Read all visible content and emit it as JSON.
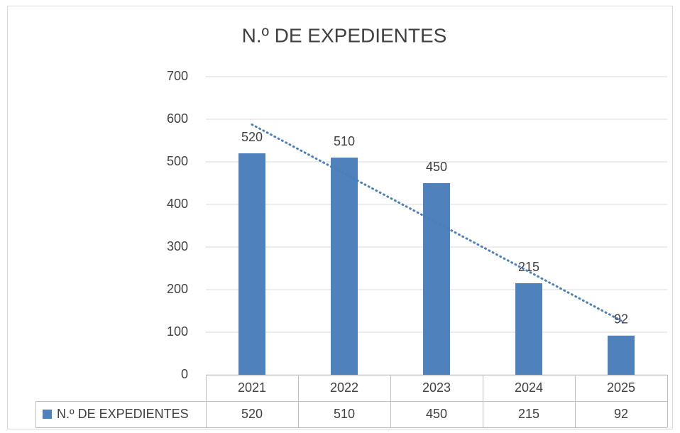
{
  "chart_data": {
    "type": "bar",
    "title": "N.º DE EXPEDIENTES",
    "categories": [
      "2021",
      "2022",
      "2023",
      "2024",
      "2025"
    ],
    "series": [
      {
        "name": "N.º DE EXPEDIENTES",
        "color": "#4f81bd",
        "values": [
          520,
          510,
          450,
          215,
          92
        ]
      }
    ],
    "ylim": [
      0,
      700
    ],
    "yticks": [
      0,
      100,
      200,
      300,
      400,
      500,
      600,
      700
    ],
    "grid": true,
    "data_labels": true,
    "data_table": true,
    "trendline": "linear",
    "trendline_color": "#4a7ebb"
  }
}
